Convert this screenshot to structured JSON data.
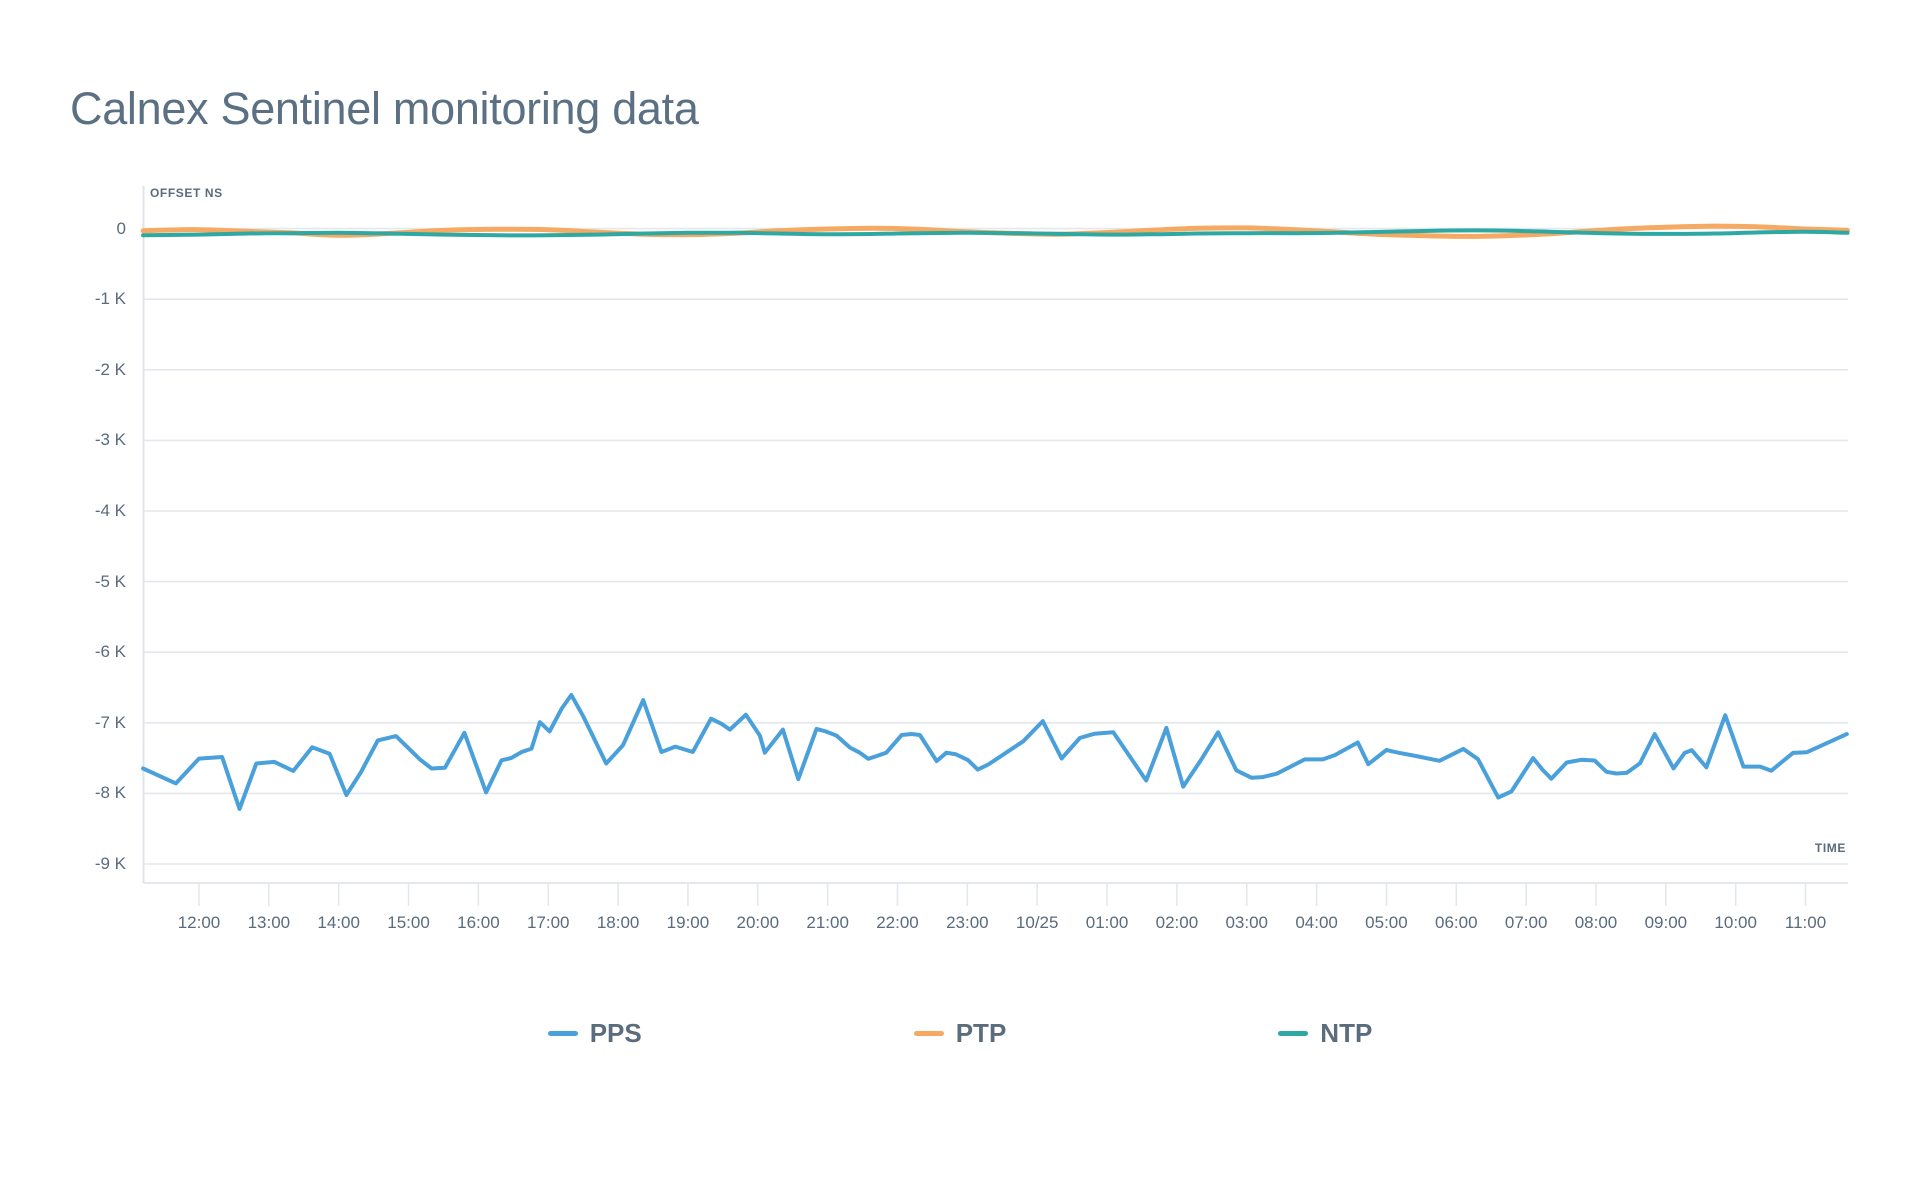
{
  "title": "Calnex Sentinel monitoring data",
  "chart_data": {
    "type": "line",
    "title": "Calnex Sentinel monitoring data",
    "y_axis_label": "OFFSET NS",
    "x_axis_label": "TIME",
    "unit": "ns",
    "grid": true,
    "legend_position": "bottom-center",
    "ylim": [
      -9300,
      600
    ],
    "y_ticks": [
      {
        "label": "0",
        "value": 0
      },
      {
        "label": "-1 K",
        "value": -1000
      },
      {
        "label": "-2 K",
        "value": -2000
      },
      {
        "label": "-3 K",
        "value": -3000
      },
      {
        "label": "-4 K",
        "value": -4000
      },
      {
        "label": "-5 K",
        "value": -5000
      },
      {
        "label": "-6 K",
        "value": -6000
      },
      {
        "label": "-7 K",
        "value": -7000
      },
      {
        "label": "-8 K",
        "value": -8000
      },
      {
        "label": "-9 K",
        "value": -9000
      }
    ],
    "x_ticks": [
      {
        "label": "12:00",
        "t": 12
      },
      {
        "label": "13:00",
        "t": 13
      },
      {
        "label": "14:00",
        "t": 14
      },
      {
        "label": "15:00",
        "t": 15
      },
      {
        "label": "16:00",
        "t": 16
      },
      {
        "label": "17:00",
        "t": 17
      },
      {
        "label": "18:00",
        "t": 18
      },
      {
        "label": "19:00",
        "t": 19
      },
      {
        "label": "20:00",
        "t": 20
      },
      {
        "label": "21:00",
        "t": 21
      },
      {
        "label": "22:00",
        "t": 22
      },
      {
        "label": "23:00",
        "t": 23
      },
      {
        "label": "10/25",
        "t": 24
      },
      {
        "label": "01:00",
        "t": 25
      },
      {
        "label": "02:00",
        "t": 26
      },
      {
        "label": "03:00",
        "t": 27
      },
      {
        "label": "04:00",
        "t": 28
      },
      {
        "label": "05:00",
        "t": 29
      },
      {
        "label": "06:00",
        "t": 30
      },
      {
        "label": "07:00",
        "t": 31
      },
      {
        "label": "08:00",
        "t": 32
      },
      {
        "label": "09:00",
        "t": 33
      },
      {
        "label": "10:00",
        "t": 34
      },
      {
        "label": "11:00",
        "t": 35
      }
    ],
    "series": [
      {
        "name": "PPS",
        "color": "#4aa0da",
        "style": "straight",
        "stroke_width": 4,
        "points": [
          [
            11.2,
            -7648
          ],
          [
            11.67,
            -7859
          ],
          [
            12.0,
            -7507
          ],
          [
            12.33,
            -7484
          ],
          [
            12.58,
            -8221
          ],
          [
            12.82,
            -7577
          ],
          [
            13.08,
            -7554
          ],
          [
            13.35,
            -7681
          ],
          [
            13.62,
            -7347
          ],
          [
            13.87,
            -7437
          ],
          [
            14.11,
            -8023
          ],
          [
            14.32,
            -7695
          ],
          [
            14.56,
            -7249
          ],
          [
            14.82,
            -7188
          ],
          [
            15.16,
            -7516
          ],
          [
            15.33,
            -7648
          ],
          [
            15.52,
            -7638
          ],
          [
            15.8,
            -7141
          ],
          [
            16.11,
            -7986
          ],
          [
            16.33,
            -7531
          ],
          [
            16.47,
            -7498
          ],
          [
            16.62,
            -7413
          ],
          [
            16.76,
            -7366
          ],
          [
            16.88,
            -6991
          ],
          [
            17.02,
            -7122
          ],
          [
            17.19,
            -6803
          ],
          [
            17.33,
            -6606
          ],
          [
            17.5,
            -6907
          ],
          [
            17.83,
            -7577
          ],
          [
            18.07,
            -7317
          ],
          [
            18.36,
            -6678
          ],
          [
            18.62,
            -7413
          ],
          [
            18.82,
            -7337
          ],
          [
            19.07,
            -7413
          ],
          [
            19.33,
            -6942
          ],
          [
            19.48,
            -7014
          ],
          [
            19.6,
            -7096
          ],
          [
            19.83,
            -6885
          ],
          [
            20.03,
            -7183
          ],
          [
            20.1,
            -7423
          ],
          [
            20.36,
            -7096
          ],
          [
            20.58,
            -7798
          ],
          [
            20.84,
            -7087
          ],
          [
            20.98,
            -7125
          ],
          [
            21.13,
            -7183
          ],
          [
            21.32,
            -7351
          ],
          [
            21.46,
            -7423
          ],
          [
            21.58,
            -7510
          ],
          [
            21.7,
            -7471
          ],
          [
            21.84,
            -7423
          ],
          [
            22.06,
            -7173
          ],
          [
            22.2,
            -7159
          ],
          [
            22.32,
            -7173
          ],
          [
            22.56,
            -7543
          ],
          [
            22.7,
            -7423
          ],
          [
            22.84,
            -7447
          ],
          [
            23.01,
            -7529
          ],
          [
            23.15,
            -7663
          ],
          [
            23.3,
            -7591
          ],
          [
            23.8,
            -7262
          ],
          [
            24.08,
            -6976
          ],
          [
            24.35,
            -7505
          ],
          [
            24.61,
            -7216
          ],
          [
            24.82,
            -7154
          ],
          [
            25.09,
            -7135
          ],
          [
            25.56,
            -7817
          ],
          [
            25.85,
            -7072
          ],
          [
            26.09,
            -7904
          ],
          [
            26.35,
            -7520
          ],
          [
            26.59,
            -7135
          ],
          [
            26.85,
            -7673
          ],
          [
            27.07,
            -7779
          ],
          [
            27.23,
            -7769
          ],
          [
            27.43,
            -7721
          ],
          [
            27.83,
            -7519
          ],
          [
            28.09,
            -7519
          ],
          [
            28.26,
            -7457
          ],
          [
            28.59,
            -7279
          ],
          [
            28.74,
            -7587
          ],
          [
            29.0,
            -7385
          ],
          [
            29.17,
            -7423
          ],
          [
            29.43,
            -7471
          ],
          [
            29.76,
            -7538
          ],
          [
            30.1,
            -7370
          ],
          [
            30.31,
            -7515
          ],
          [
            30.6,
            -8058
          ],
          [
            30.79,
            -7971
          ],
          [
            31.1,
            -7500
          ],
          [
            31.24,
            -7670
          ],
          [
            31.36,
            -7792
          ],
          [
            31.58,
            -7563
          ],
          [
            31.79,
            -7524
          ],
          [
            31.98,
            -7534
          ],
          [
            32.15,
            -7694
          ],
          [
            32.29,
            -7718
          ],
          [
            32.44,
            -7709
          ],
          [
            32.63,
            -7573
          ],
          [
            32.84,
            -7160
          ],
          [
            33.11,
            -7646
          ],
          [
            33.27,
            -7427
          ],
          [
            33.37,
            -7388
          ],
          [
            33.58,
            -7631
          ],
          [
            33.85,
            -6893
          ],
          [
            34.11,
            -7621
          ],
          [
            34.35,
            -7621
          ],
          [
            34.51,
            -7679
          ],
          [
            34.82,
            -7427
          ],
          [
            35.02,
            -7417
          ],
          [
            35.59,
            -7160
          ]
        ]
      },
      {
        "name": "PTP",
        "color": "#f5a963",
        "style": "smooth",
        "stroke_width": 5,
        "points": [
          [
            11.2,
            -30
          ],
          [
            12,
            -15
          ],
          [
            12.7,
            -40
          ],
          [
            13.3,
            -60
          ],
          [
            14,
            -95
          ],
          [
            14.7,
            -70
          ],
          [
            15.5,
            -25
          ],
          [
            16.3,
            -10
          ],
          [
            17,
            -15
          ],
          [
            17.7,
            -50
          ],
          [
            18.4,
            -80
          ],
          [
            19,
            -85
          ],
          [
            19.7,
            -65
          ],
          [
            20.3,
            -30
          ],
          [
            21,
            -5
          ],
          [
            21.7,
            5
          ],
          [
            22.3,
            -10
          ],
          [
            23,
            -45
          ],
          [
            23.7,
            -70
          ],
          [
            24.3,
            -80
          ],
          [
            25,
            -55
          ],
          [
            25.7,
            -20
          ],
          [
            26.3,
            5
          ],
          [
            27,
            10
          ],
          [
            27.7,
            -15
          ],
          [
            28.3,
            -50
          ],
          [
            29,
            -85
          ],
          [
            29.7,
            -105
          ],
          [
            30.3,
            -110
          ],
          [
            31,
            -90
          ],
          [
            31.7,
            -50
          ],
          [
            32.3,
            -10
          ],
          [
            33,
            20
          ],
          [
            33.7,
            35
          ],
          [
            34.3,
            25
          ],
          [
            35,
            -5
          ],
          [
            35.6,
            -25
          ]
        ]
      },
      {
        "name": "NTP",
        "color": "#2ea8a3",
        "style": "smooth",
        "stroke_width": 4,
        "points": [
          [
            11.2,
            -95
          ],
          [
            12,
            -85
          ],
          [
            12.7,
            -70
          ],
          [
            13.3,
            -65
          ],
          [
            14,
            -60
          ],
          [
            14.7,
            -70
          ],
          [
            15.5,
            -85
          ],
          [
            16.3,
            -95
          ],
          [
            17,
            -95
          ],
          [
            17.7,
            -85
          ],
          [
            18.4,
            -70
          ],
          [
            19,
            -60
          ],
          [
            19.7,
            -60
          ],
          [
            20.3,
            -70
          ],
          [
            21,
            -80
          ],
          [
            21.7,
            -75
          ],
          [
            22.3,
            -65
          ],
          [
            23,
            -60
          ],
          [
            23.7,
            -65
          ],
          [
            24.3,
            -75
          ],
          [
            25,
            -85
          ],
          [
            25.7,
            -80
          ],
          [
            26.3,
            -70
          ],
          [
            27,
            -65
          ],
          [
            27.7,
            -65
          ],
          [
            28.3,
            -60
          ],
          [
            29,
            -45
          ],
          [
            29.7,
            -30
          ],
          [
            30.3,
            -25
          ],
          [
            31,
            -35
          ],
          [
            31.7,
            -55
          ],
          [
            32.3,
            -70
          ],
          [
            33,
            -75
          ],
          [
            33.7,
            -70
          ],
          [
            34.3,
            -55
          ],
          [
            35,
            -45
          ],
          [
            35.6,
            -60
          ]
        ]
      }
    ],
    "legend": [
      "PPS",
      "PTP",
      "NTP"
    ],
    "colors": {
      "pps": "#4aa0da",
      "ptp": "#f5a963",
      "ntp": "#2ea8a3",
      "text": "#5a6b7d",
      "title_text": "#5c7084",
      "gridline": "#e4e8ec",
      "axis": "#dfe4e9"
    }
  }
}
